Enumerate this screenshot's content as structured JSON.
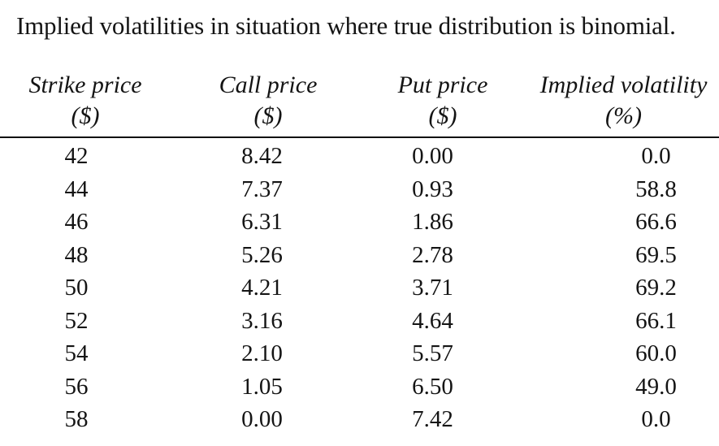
{
  "caption": "Implied volatilities in situation where true distribution is binomial.",
  "table": {
    "headers": [
      {
        "label": "Strike price",
        "unit": "($)"
      },
      {
        "label": "Call price",
        "unit": "($)"
      },
      {
        "label": "Put price",
        "unit": "($)"
      },
      {
        "label": "Implied volatility",
        "unit": "(%)"
      }
    ],
    "rows": [
      [
        "42",
        "8.42",
        "0.00",
        "0.0"
      ],
      [
        "44",
        "7.37",
        "0.93",
        "58.8"
      ],
      [
        "46",
        "6.31",
        "1.86",
        "66.6"
      ],
      [
        "48",
        "5.26",
        "2.78",
        "69.5"
      ],
      [
        "50",
        "4.21",
        "3.71",
        "69.2"
      ],
      [
        "52",
        "3.16",
        "4.64",
        "66.1"
      ],
      [
        "54",
        "2.10",
        "5.57",
        "60.0"
      ],
      [
        "56",
        "1.05",
        "6.50",
        "49.0"
      ],
      [
        "58",
        "0.00",
        "7.42",
        "0.0"
      ]
    ]
  }
}
